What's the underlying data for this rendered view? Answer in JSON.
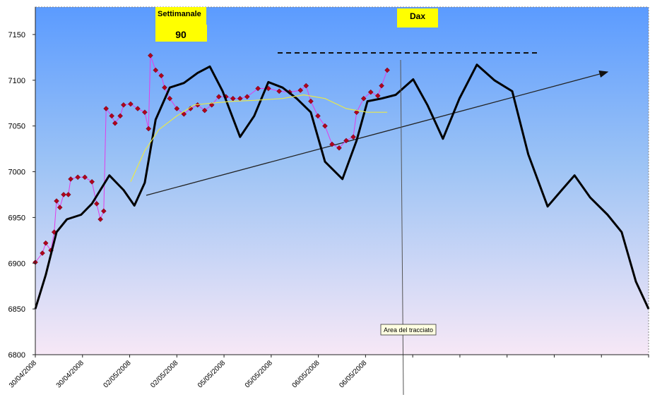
{
  "chart_data": {
    "type": "line",
    "categories": [
      "30/04/2008",
      "30/04/2008",
      "02/05/2008",
      "02/05/2008",
      "05/05/2008",
      "05/05/2008",
      "06/05/2008",
      "06/05/2008",
      null,
      null,
      null,
      null,
      null,
      null
    ],
    "xlim": [
      0,
      13
    ],
    "ylim": [
      6800,
      7180
    ],
    "yticks": [
      6800,
      6850,
      6900,
      6950,
      7000,
      7050,
      7100,
      7150
    ],
    "annotations": [
      "Settimanale",
      "90",
      "Dax"
    ],
    "tooltip": "Area del tracciato",
    "series": [
      {
        "color": "#b0001c",
        "line_color": "#e23ce8",
        "marker": "diamond",
        "x": [
          0,
          0.15,
          0.22,
          0.33,
          0.4,
          0.45,
          0.52,
          0.6,
          0.7,
          0.75,
          0.9,
          1.05,
          1.2,
          1.3,
          1.38,
          1.45,
          1.5,
          1.62,
          1.69,
          1.8,
          1.87,
          2.02,
          2.17,
          2.32,
          2.4,
          2.44,
          2.55,
          2.67,
          2.74,
          2.85,
          3.0,
          3.15,
          3.29,
          3.44,
          3.59,
          3.74,
          3.89,
          4.04,
          4.19,
          4.34,
          4.49,
          4.72,
          4.94,
          5.17,
          5.39,
          5.62,
          5.74,
          5.84,
          5.99,
          6.14,
          6.29,
          6.44,
          6.59,
          6.74,
          6.81,
          6.96,
          7.11,
          7.26,
          7.34,
          7.46
        ],
        "values": [
          6901,
          6911,
          6922,
          6914,
          6934,
          6968,
          6961,
          6975,
          6975,
          6992,
          6994,
          6994,
          6989,
          6965,
          6948,
          6957,
          7069,
          7061,
          7053,
          7061,
          7073,
          7074,
          7069,
          7065,
          7047,
          7127,
          7111,
          7105,
          7092,
          7080,
          7069,
          7063,
          7069,
          7073,
          7067,
          7073,
          7082,
          7082,
          7080,
          7080,
          7082,
          7091,
          7091,
          7088,
          7087,
          7089,
          7094,
          7077,
          7061,
          7050,
          7030,
          7026,
          7034,
          7038,
          7065,
          7080,
          7087,
          7083,
          7094,
          7111
        ]
      },
      {
        "color": "#000000",
        "marker": "none",
        "x": [
          0,
          0.22,
          0.45,
          0.67,
          0.97,
          1.2,
          1.57,
          1.87,
          2.1,
          2.32,
          2.55,
          2.85,
          3.15,
          3.44,
          3.7,
          3.97,
          4.34,
          4.64,
          4.94,
          5.24,
          5.54,
          5.84,
          6.14,
          6.51,
          6.81,
          7.04,
          7.34,
          7.64,
          8.01,
          8.31,
          8.64,
          8.99,
          9.36,
          9.73,
          10.11,
          10.45,
          10.86,
          11.16,
          11.43,
          11.76,
          12.13,
          12.43,
          12.73,
          13
        ],
        "values": [
          6850,
          6887,
          6934,
          6948,
          6953,
          6965,
          6996,
          6980,
          6963,
          6988,
          7057,
          7092,
          7097,
          7108,
          7115,
          7088,
          7038,
          7061,
          7098,
          7092,
          7080,
          7065,
          7011,
          6992,
          7034,
          7077,
          7080,
          7084,
          7101,
          7073,
          7036,
          7080,
          7117,
          7100,
          7088,
          7019,
          6962,
          6980,
          6996,
          6972,
          6953,
          6934,
          6880,
          6850
        ]
      },
      {
        "color": "#e8e84a",
        "marker": "none",
        "x": [
          2.02,
          2.32,
          2.62,
          3.0,
          3.37,
          3.74,
          4.19,
          4.64,
          5.24,
          5.69,
          6.14,
          6.59,
          7.04,
          7.46
        ],
        "values": [
          6989,
          7023,
          7046,
          7061,
          7073,
          7075,
          7077,
          7078,
          7080,
          7084,
          7080,
          7069,
          7065,
          7065
        ]
      }
    ]
  }
}
